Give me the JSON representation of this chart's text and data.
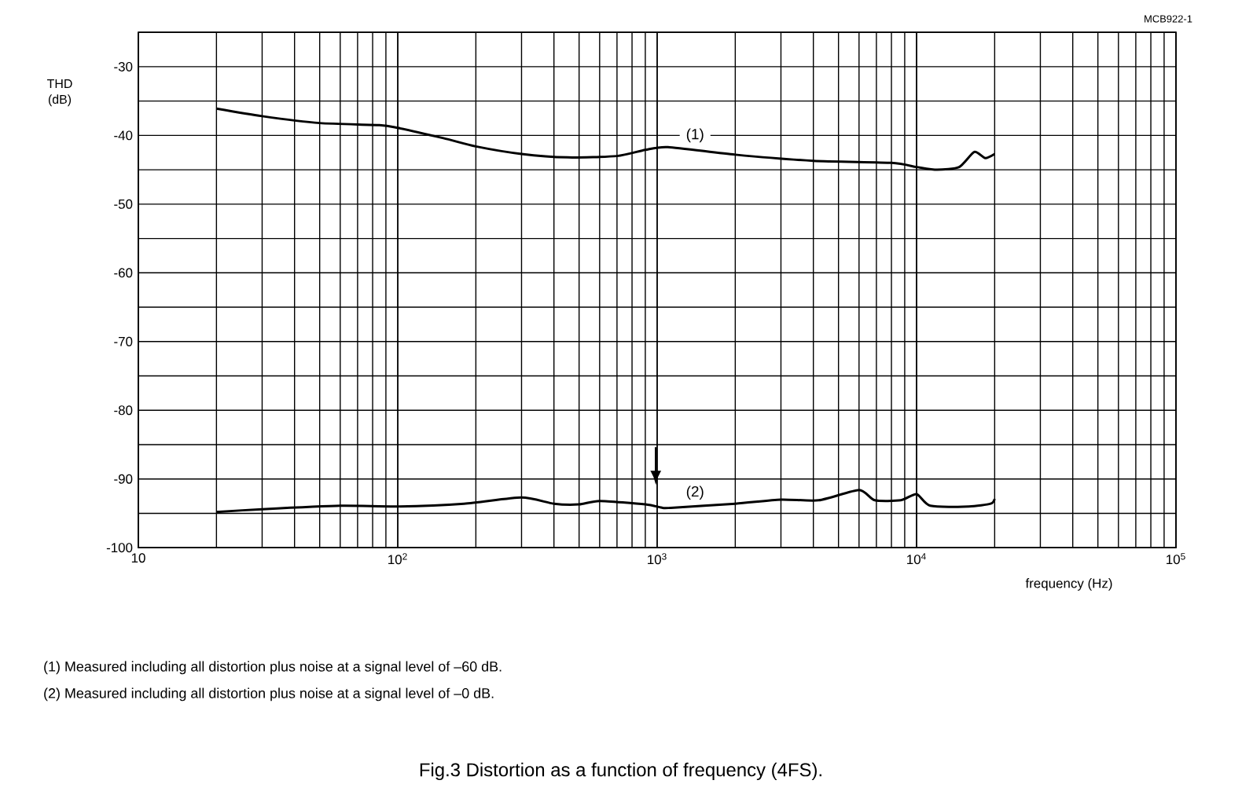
{
  "chart_data": {
    "type": "line",
    "title": "Fig.3  Distortion as a function of frequency (4FS).",
    "xlabel": "frequency (Hz)",
    "ylabel": "THD (dB)",
    "log": "x",
    "grid": true,
    "marker": "none",
    "line_style": "solid",
    "xlim": [
      10,
      100000
    ],
    "xticks": [
      10,
      {
        "value": 100,
        "label": "10$^{2}$"
      },
      {
        "value": 1000,
        "label": "10$^{3}$"
      },
      {
        "value": 10000,
        "label": "10$^{4}$"
      },
      {
        "value": 100000,
        "label": "10$^{5}$"
      }
    ],
    "ylim": [
      -100,
      -25
    ],
    "yticks": [
      -100,
      {
        "value": -95,
        "label": null
      },
      -90,
      {
        "value": -85,
        "label": null
      },
      -80,
      {
        "value": -75,
        "label": null
      },
      -70,
      {
        "value": -65,
        "label": null
      },
      -60,
      {
        "value": -55,
        "label": null
      },
      -50,
      {
        "value": -45,
        "label": null
      },
      -40,
      {
        "value": -35,
        "label": null
      },
      -30,
      {
        "value": -25,
        "label": null
      }
    ],
    "series": [
      {
        "color": "#000000",
        "x": [
          20,
          30,
          50,
          85,
          100,
          150,
          200,
          300,
          450,
          700,
          900,
          1100,
          2000,
          4000,
          8000,
          10000,
          12000,
          14600,
          16700,
          18400,
          20000
        ],
        "values": [
          -36.1,
          -37.2,
          -38.2,
          -38.5,
          -38.9,
          -40.4,
          -41.6,
          -42.7,
          -43.2,
          -43.0,
          -42.1,
          -41.7,
          -42.8,
          -43.7,
          -44.0,
          -44.6,
          -45.0,
          -44.6,
          -42.4,
          -43.3,
          -42.7
        ]
      },
      {
        "color": "#000000",
        "x": [
          20,
          30,
          60,
          100,
          180,
          300,
          400,
          500,
          600,
          900,
          1050,
          1130,
          2000,
          3000,
          4200,
          6000,
          6900,
          8700,
          10000,
          11300,
          15900,
          19300,
          20000
        ],
        "values": [
          -94.8,
          -94.4,
          -93.9,
          -94.0,
          -93.6,
          -92.7,
          -93.6,
          -93.7,
          -93.2,
          -93.7,
          -94.2,
          -94.2,
          -93.6,
          -93.0,
          -93.1,
          -91.6,
          -93.1,
          -93.1,
          -92.2,
          -93.9,
          -94.0,
          -93.6,
          -92.9
        ]
      }
    ],
    "annotations": [
      "MCB922-1",
      "(1) Measured including all distortion plus noise at a signal level of –60 dB.",
      "(2) Measured including all distortion plus noise at a signal level of –0 dB.",
      {
        "text": "(1)",
        "x": 1400,
        "y": -40
      },
      {
        "text": "(2)",
        "x": 1400,
        "y": -92
      }
    ]
  }
}
